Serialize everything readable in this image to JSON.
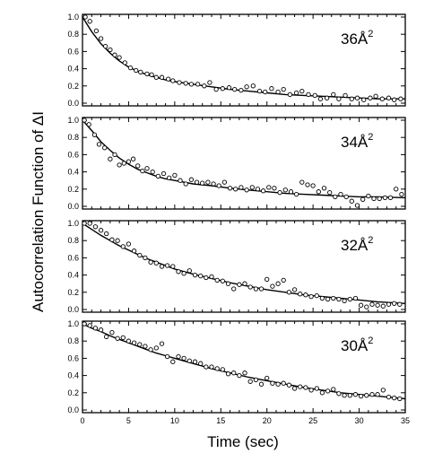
{
  "figure": {
    "ylabel": "Autocorrelation  Function of  ΔI",
    "xlabel": "Time (sec)"
  },
  "chart_data": [
    {
      "type": "scatter",
      "label": "36Å",
      "label_exponent": "2",
      "xlim": [
        0,
        35
      ],
      "ylim": [
        0,
        1.0
      ],
      "x_ticks": [
        "0",
        "5",
        "10",
        "15",
        "20",
        "25",
        "30",
        "35"
      ],
      "y_ticks": [
        "0.0",
        "0.2",
        "0.4",
        "0.6",
        "0.8",
        "1.0"
      ],
      "grid": false,
      "points": [
        [
          0.3,
          1.0
        ],
        [
          0.8,
          0.95
        ],
        [
          1.5,
          0.84
        ],
        [
          2.0,
          0.75
        ],
        [
          2.5,
          0.66
        ],
        [
          3.0,
          0.62
        ],
        [
          3.5,
          0.56
        ],
        [
          4.0,
          0.53
        ],
        [
          4.6,
          0.47
        ],
        [
          5.2,
          0.41
        ],
        [
          5.8,
          0.38
        ],
        [
          6.3,
          0.36
        ],
        [
          7.0,
          0.34
        ],
        [
          7.5,
          0.33
        ],
        [
          8.0,
          0.3
        ],
        [
          8.6,
          0.3
        ],
        [
          9.3,
          0.28
        ],
        [
          9.8,
          0.26
        ],
        [
          10.5,
          0.24
        ],
        [
          11.2,
          0.23
        ],
        [
          11.8,
          0.22
        ],
        [
          12.5,
          0.22
        ],
        [
          13.2,
          0.2
        ],
        [
          13.8,
          0.24
        ],
        [
          14.5,
          0.16
        ],
        [
          15.2,
          0.17
        ],
        [
          15.9,
          0.18
        ],
        [
          16.5,
          0.16
        ],
        [
          17.2,
          0.15
        ],
        [
          17.8,
          0.19
        ],
        [
          18.5,
          0.2
        ],
        [
          19.2,
          0.14
        ],
        [
          19.8,
          0.13
        ],
        [
          20.5,
          0.17
        ],
        [
          21.2,
          0.13
        ],
        [
          21.8,
          0.16
        ],
        [
          22.5,
          0.1
        ],
        [
          23.2,
          0.12
        ],
        [
          23.8,
          0.14
        ],
        [
          24.5,
          0.1
        ],
        [
          25.2,
          0.09
        ],
        [
          25.8,
          0.05
        ],
        [
          26.5,
          0.06
        ],
        [
          27.2,
          0.1
        ],
        [
          27.8,
          0.05
        ],
        [
          28.5,
          0.09
        ],
        [
          29.2,
          0.05
        ],
        [
          29.8,
          0.06
        ],
        [
          30.5,
          0.04
        ],
        [
          31.2,
          0.06
        ],
        [
          31.8,
          0.08
        ],
        [
          32.5,
          0.05
        ],
        [
          33.2,
          0.06
        ],
        [
          33.8,
          0.04
        ],
        [
          34.5,
          0.05
        ]
      ],
      "fit": [
        [
          0,
          1.0
        ],
        [
          1,
          0.83
        ],
        [
          2,
          0.69
        ],
        [
          3,
          0.58
        ],
        [
          4,
          0.49
        ],
        [
          5,
          0.42
        ],
        [
          6,
          0.37
        ],
        [
          7,
          0.33
        ],
        [
          8,
          0.3
        ],
        [
          9,
          0.27
        ],
        [
          10,
          0.25
        ],
        [
          12,
          0.22
        ],
        [
          14,
          0.19
        ],
        [
          16,
          0.16
        ],
        [
          18,
          0.14
        ],
        [
          20,
          0.12
        ],
        [
          22,
          0.1
        ],
        [
          24,
          0.09
        ],
        [
          26,
          0.08
        ],
        [
          28,
          0.07
        ],
        [
          30,
          0.06
        ],
        [
          32,
          0.05
        ],
        [
          35,
          0.05
        ]
      ]
    },
    {
      "type": "scatter",
      "label": "34Å",
      "label_exponent": "2",
      "xlim": [
        0,
        35
      ],
      "ylim": [
        0,
        1.0
      ],
      "x_ticks": [
        "0",
        "5",
        "10",
        "15",
        "20",
        "25",
        "30",
        "35"
      ],
      "y_ticks": [
        "0.0",
        "0.2",
        "0.4",
        "0.6",
        "0.8",
        "1.0"
      ],
      "grid": false,
      "points": [
        [
          0.2,
          1.0
        ],
        [
          0.7,
          0.95
        ],
        [
          1.3,
          0.83
        ],
        [
          1.8,
          0.72
        ],
        [
          2.4,
          0.68
        ],
        [
          3.0,
          0.55
        ],
        [
          3.5,
          0.6
        ],
        [
          4.0,
          0.48
        ],
        [
          4.5,
          0.5
        ],
        [
          5.0,
          0.52
        ],
        [
          5.5,
          0.55
        ],
        [
          6.0,
          0.47
        ],
        [
          6.5,
          0.41
        ],
        [
          7.0,
          0.44
        ],
        [
          7.6,
          0.4
        ],
        [
          8.2,
          0.35
        ],
        [
          8.8,
          0.38
        ],
        [
          9.4,
          0.33
        ],
        [
          10.0,
          0.36
        ],
        [
          10.6,
          0.3
        ],
        [
          11.2,
          0.26
        ],
        [
          11.8,
          0.31
        ],
        [
          12.4,
          0.28
        ],
        [
          13.0,
          0.27
        ],
        [
          13.6,
          0.28
        ],
        [
          14.2,
          0.26
        ],
        [
          14.8,
          0.24
        ],
        [
          15.4,
          0.28
        ],
        [
          16.0,
          0.21
        ],
        [
          16.6,
          0.2
        ],
        [
          17.2,
          0.22
        ],
        [
          17.8,
          0.19
        ],
        [
          18.4,
          0.22
        ],
        [
          19.0,
          0.2
        ],
        [
          19.6,
          0.18
        ],
        [
          20.2,
          0.22
        ],
        [
          20.8,
          0.21
        ],
        [
          21.4,
          0.16
        ],
        [
          22.0,
          0.19
        ],
        [
          22.6,
          0.17
        ],
        [
          23.2,
          0.14
        ],
        [
          23.8,
          0.28
        ],
        [
          24.4,
          0.25
        ],
        [
          25.0,
          0.24
        ],
        [
          25.6,
          0.17
        ],
        [
          26.2,
          0.21
        ],
        [
          26.8,
          0.16
        ],
        [
          27.4,
          0.11
        ],
        [
          28.0,
          0.14
        ],
        [
          28.6,
          0.11
        ],
        [
          29.2,
          0.06
        ],
        [
          29.8,
          0.01
        ],
        [
          30.4,
          0.08
        ],
        [
          31.0,
          0.12
        ],
        [
          31.6,
          0.09
        ],
        [
          32.2,
          0.09
        ],
        [
          32.8,
          0.1
        ],
        [
          33.4,
          0.1
        ],
        [
          34.0,
          0.2
        ],
        [
          34.6,
          0.14
        ]
      ],
      "fit": [
        [
          0,
          1.0
        ],
        [
          1,
          0.88
        ],
        [
          2,
          0.75
        ],
        [
          3,
          0.65
        ],
        [
          4,
          0.56
        ],
        [
          5,
          0.49
        ],
        [
          6,
          0.43
        ],
        [
          7,
          0.39
        ],
        [
          8,
          0.35
        ],
        [
          9,
          0.32
        ],
        [
          10,
          0.3
        ],
        [
          12,
          0.26
        ],
        [
          14,
          0.24
        ],
        [
          16,
          0.21
        ],
        [
          18,
          0.19
        ],
        [
          20,
          0.17
        ],
        [
          22,
          0.15
        ],
        [
          24,
          0.14
        ],
        [
          26,
          0.13
        ],
        [
          28,
          0.12
        ],
        [
          30,
          0.11
        ],
        [
          32,
          0.11
        ],
        [
          35,
          0.1
        ]
      ]
    },
    {
      "type": "scatter",
      "label": "32Å",
      "label_exponent": "2",
      "xlim": [
        0,
        35
      ],
      "ylim": [
        0,
        1.0
      ],
      "x_ticks": [
        "0",
        "5",
        "10",
        "15",
        "20",
        "25",
        "30",
        "35"
      ],
      "y_ticks": [
        "0.0",
        "0.2",
        "0.4",
        "0.6",
        "0.8",
        "1.0"
      ],
      "grid": false,
      "points": [
        [
          0.2,
          1.0
        ],
        [
          0.8,
          1.0
        ],
        [
          1.4,
          0.96
        ],
        [
          2.0,
          0.92
        ],
        [
          2.6,
          0.88
        ],
        [
          3.2,
          0.81
        ],
        [
          3.8,
          0.8
        ],
        [
          4.4,
          0.73
        ],
        [
          5.0,
          0.76
        ],
        [
          5.6,
          0.68
        ],
        [
          6.2,
          0.63
        ],
        [
          6.8,
          0.6
        ],
        [
          7.4,
          0.55
        ],
        [
          8.0,
          0.54
        ],
        [
          8.6,
          0.5
        ],
        [
          9.2,
          0.51
        ],
        [
          9.8,
          0.5
        ],
        [
          10.4,
          0.44
        ],
        [
          11.0,
          0.42
        ],
        [
          11.6,
          0.45
        ],
        [
          12.2,
          0.4
        ],
        [
          12.8,
          0.39
        ],
        [
          13.4,
          0.37
        ],
        [
          14.0,
          0.38
        ],
        [
          14.6,
          0.34
        ],
        [
          15.2,
          0.33
        ],
        [
          15.8,
          0.3
        ],
        [
          16.4,
          0.24
        ],
        [
          17.0,
          0.29
        ],
        [
          17.6,
          0.3
        ],
        [
          18.2,
          0.26
        ],
        [
          18.8,
          0.24
        ],
        [
          19.4,
          0.24
        ],
        [
          20.0,
          0.35
        ],
        [
          20.6,
          0.27
        ],
        [
          21.2,
          0.3
        ],
        [
          21.8,
          0.34
        ],
        [
          22.4,
          0.2
        ],
        [
          23.0,
          0.23
        ],
        [
          23.6,
          0.18
        ],
        [
          24.2,
          0.17
        ],
        [
          24.8,
          0.15
        ],
        [
          25.4,
          0.16
        ],
        [
          26.0,
          0.13
        ],
        [
          26.6,
          0.12
        ],
        [
          27.2,
          0.13
        ],
        [
          27.8,
          0.12
        ],
        [
          28.4,
          0.1
        ],
        [
          29.0,
          0.12
        ],
        [
          29.6,
          0.13
        ],
        [
          30.2,
          0.05
        ],
        [
          30.8,
          0.03
        ],
        [
          31.4,
          0.06
        ],
        [
          32.0,
          0.05
        ],
        [
          32.6,
          0.04
        ],
        [
          33.2,
          0.06
        ],
        [
          33.8,
          0.07
        ],
        [
          34.4,
          0.06
        ]
      ],
      "fit": [
        [
          0,
          1.0
        ],
        [
          1,
          0.93
        ],
        [
          2,
          0.86
        ],
        [
          3,
          0.8
        ],
        [
          4,
          0.74
        ],
        [
          5,
          0.69
        ],
        [
          6,
          0.64
        ],
        [
          7,
          0.59
        ],
        [
          8,
          0.55
        ],
        [
          9,
          0.51
        ],
        [
          10,
          0.47
        ],
        [
          12,
          0.41
        ],
        [
          14,
          0.36
        ],
        [
          16,
          0.31
        ],
        [
          18,
          0.27
        ],
        [
          20,
          0.23
        ],
        [
          22,
          0.2
        ],
        [
          24,
          0.17
        ],
        [
          26,
          0.15
        ],
        [
          28,
          0.13
        ],
        [
          30,
          0.11
        ],
        [
          32,
          0.09
        ],
        [
          35,
          0.07
        ]
      ]
    },
    {
      "type": "scatter",
      "label": "30Å",
      "label_exponent": "2",
      "xlim": [
        0,
        35
      ],
      "ylim": [
        0,
        1.0
      ],
      "x_ticks": [
        "0",
        "5",
        "10",
        "15",
        "20",
        "25",
        "30",
        "35"
      ],
      "y_ticks": [
        "0.0",
        "0.2",
        "0.4",
        "0.6",
        "0.8",
        "1.0"
      ],
      "grid": false,
      "points": [
        [
          0.2,
          1.0
        ],
        [
          0.8,
          0.98
        ],
        [
          1.4,
          0.95
        ],
        [
          2.0,
          0.93
        ],
        [
          2.6,
          0.85
        ],
        [
          3.2,
          0.9
        ],
        [
          3.8,
          0.83
        ],
        [
          4.4,
          0.84
        ],
        [
          5.0,
          0.8
        ],
        [
          5.6,
          0.78
        ],
        [
          6.2,
          0.76
        ],
        [
          6.8,
          0.74
        ],
        [
          7.4,
          0.7
        ],
        [
          8.0,
          0.72
        ],
        [
          8.6,
          0.77
        ],
        [
          9.2,
          0.62
        ],
        [
          9.8,
          0.56
        ],
        [
          10.4,
          0.62
        ],
        [
          11.0,
          0.6
        ],
        [
          11.6,
          0.57
        ],
        [
          12.2,
          0.56
        ],
        [
          12.8,
          0.54
        ],
        [
          13.4,
          0.5
        ],
        [
          14.0,
          0.5
        ],
        [
          14.6,
          0.48
        ],
        [
          15.2,
          0.47
        ],
        [
          15.8,
          0.42
        ],
        [
          16.4,
          0.43
        ],
        [
          17.0,
          0.4
        ],
        [
          17.6,
          0.43
        ],
        [
          18.2,
          0.33
        ],
        [
          18.8,
          0.35
        ],
        [
          19.4,
          0.3
        ],
        [
          20.0,
          0.37
        ],
        [
          20.6,
          0.31
        ],
        [
          21.2,
          0.3
        ],
        [
          21.8,
          0.31
        ],
        [
          22.4,
          0.29
        ],
        [
          23.0,
          0.25
        ],
        [
          23.6,
          0.27
        ],
        [
          24.2,
          0.26
        ],
        [
          24.8,
          0.23
        ],
        [
          25.4,
          0.25
        ],
        [
          26.0,
          0.2
        ],
        [
          26.6,
          0.22
        ],
        [
          27.2,
          0.24
        ],
        [
          27.8,
          0.19
        ],
        [
          28.4,
          0.17
        ],
        [
          29.0,
          0.17
        ],
        [
          29.6,
          0.18
        ],
        [
          30.2,
          0.16
        ],
        [
          30.8,
          0.17
        ],
        [
          31.4,
          0.18
        ],
        [
          32.0,
          0.18
        ],
        [
          32.6,
          0.23
        ],
        [
          33.2,
          0.15
        ],
        [
          33.8,
          0.14
        ],
        [
          34.4,
          0.13
        ]
      ],
      "fit": [
        [
          0,
          1.0
        ],
        [
          1,
          0.95
        ],
        [
          2,
          0.91
        ],
        [
          3,
          0.86
        ],
        [
          4,
          0.82
        ],
        [
          5,
          0.78
        ],
        [
          6,
          0.74
        ],
        [
          7,
          0.7
        ],
        [
          8,
          0.66
        ],
        [
          9,
          0.63
        ],
        [
          10,
          0.6
        ],
        [
          12,
          0.54
        ],
        [
          14,
          0.48
        ],
        [
          16,
          0.43
        ],
        [
          18,
          0.38
        ],
        [
          20,
          0.34
        ],
        [
          22,
          0.3
        ],
        [
          24,
          0.26
        ],
        [
          26,
          0.23
        ],
        [
          28,
          0.2
        ],
        [
          30,
          0.18
        ],
        [
          32,
          0.16
        ],
        [
          35,
          0.13
        ]
      ]
    }
  ]
}
